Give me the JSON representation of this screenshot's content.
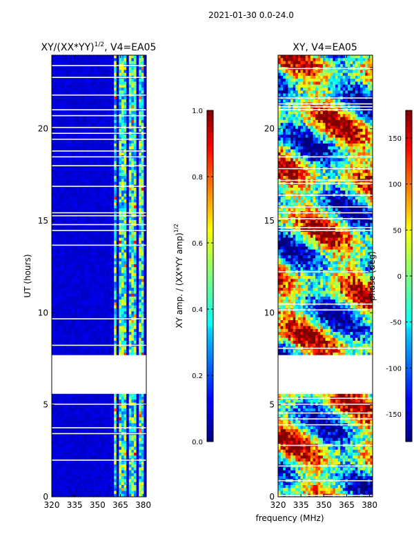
{
  "suptitle": "2021-01-30 0.0-24.0",
  "xlabel_shared": "frequency (MHz)",
  "chart_data": [
    {
      "type": "heatmap",
      "title_main": "XY/(XX*YY)",
      "title_sup": "1/2",
      "title_tail": ", V4=EA05",
      "ylabel": "UT (hours)",
      "xlim": [
        320,
        382
      ],
      "ylim": [
        0,
        24
      ],
      "xticks": [
        "320",
        "335",
        "350",
        "365",
        "380"
      ],
      "xtick_values": [
        320,
        335,
        350,
        365,
        380
      ],
      "yticks": [
        "0",
        "5",
        "10",
        "15",
        "20"
      ],
      "ytick_values": [
        0,
        5,
        10,
        15,
        20
      ],
      "data_gap_hours": [
        5.6,
        7.7
      ],
      "active_band_mhz": [
        360,
        380
      ],
      "colorbar": {
        "label_main": "XY amp. / (XX*YY amp)",
        "label_sup": "1/2",
        "range": [
          0.0,
          1.0
        ],
        "ticks": [
          "0.0",
          "0.2",
          "0.4",
          "0.6",
          "0.8",
          "1.0"
        ],
        "tick_values": [
          0.0,
          0.2,
          0.4,
          0.6,
          0.8,
          1.0
        ]
      }
    },
    {
      "type": "heatmap",
      "title": "XY, V4=EA05",
      "xlim": [
        320,
        382
      ],
      "ylim": [
        0,
        24
      ],
      "xticks": [
        "320",
        "335",
        "350",
        "365",
        "380"
      ],
      "xtick_values": [
        320,
        335,
        350,
        365,
        380
      ],
      "yticks": [
        "0",
        "5",
        "10",
        "15",
        "20"
      ],
      "ytick_values": [
        0,
        5,
        10,
        15,
        20
      ],
      "data_gap_hours": [
        5.6,
        7.7
      ],
      "colorbar": {
        "label": "phase (deg)",
        "range": [
          -180,
          180
        ],
        "ticks": [
          "-150",
          "-100",
          "-50",
          "0",
          "50",
          "100",
          "150"
        ],
        "tick_values": [
          -150,
          -100,
          -50,
          0,
          50,
          100,
          150
        ]
      }
    }
  ]
}
